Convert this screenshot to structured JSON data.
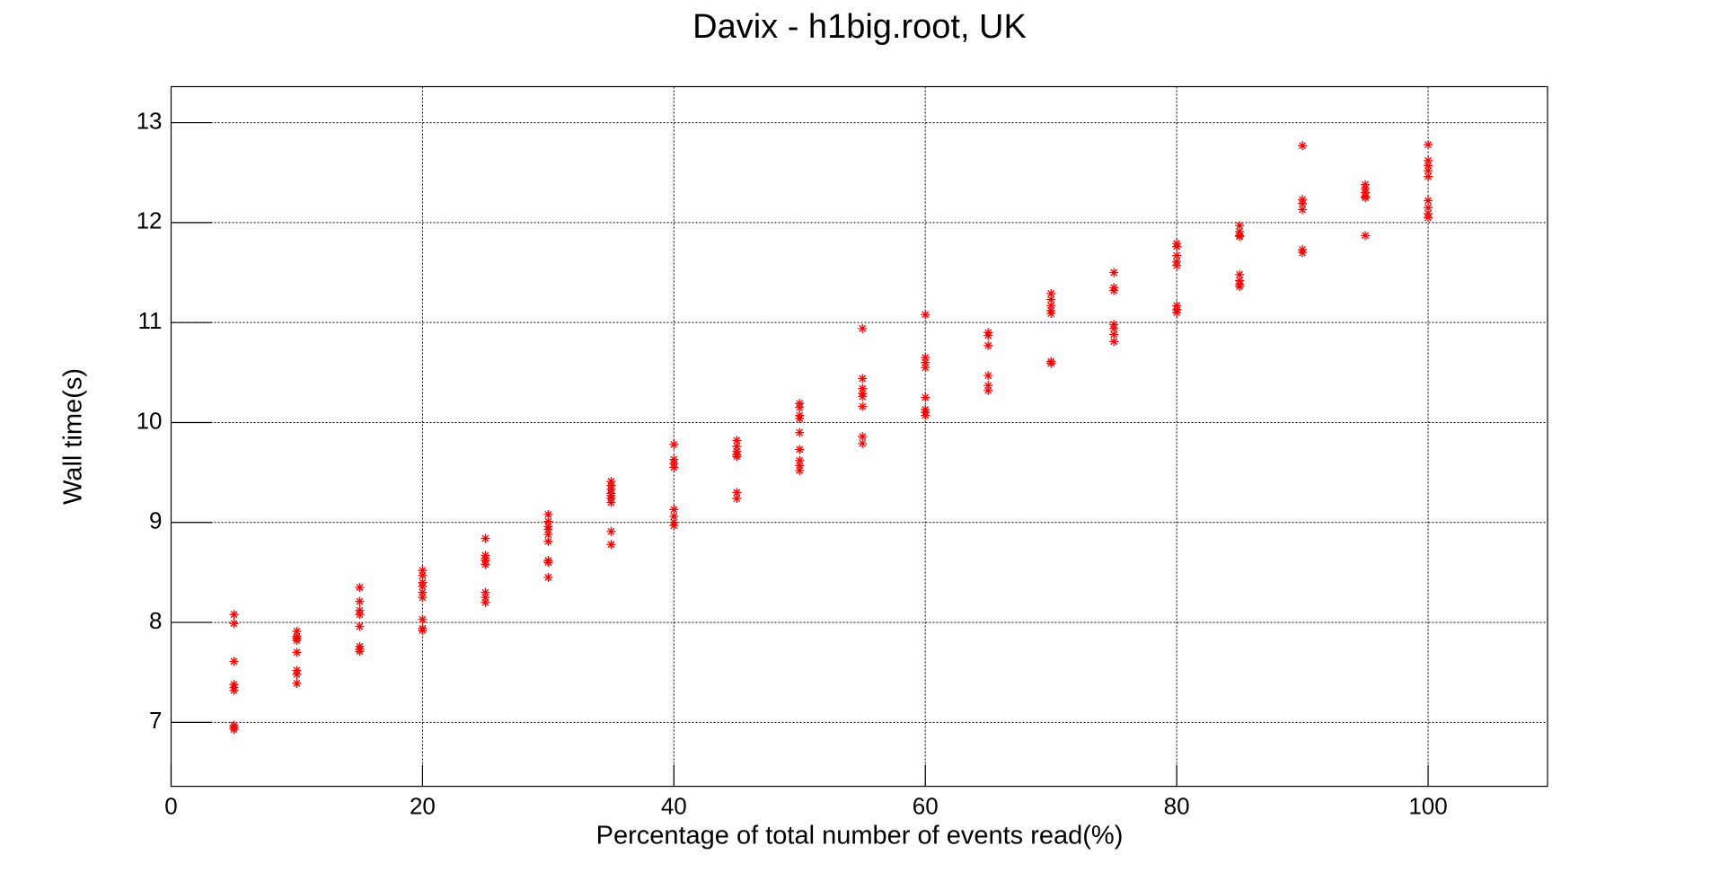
{
  "chart_data": {
    "type": "scatter",
    "title": "Davix - h1big.root, UK",
    "xlabel": "Percentage of total number of events read(%)",
    "ylabel": "Wall time(s)",
    "xlim": [
      0,
      109.5
    ],
    "ylim": [
      6.36,
      13.36
    ],
    "xticks": [
      0,
      20,
      40,
      60,
      80,
      100
    ],
    "yticks": [
      7,
      8,
      9,
      10,
      11,
      12,
      13
    ],
    "grid": true,
    "series": [
      {
        "color": "#ff0000",
        "x": [
          5,
          5,
          5,
          5,
          5,
          5,
          5,
          5,
          5,
          10,
          10,
          10,
          10,
          10,
          10,
          10,
          10,
          15,
          15,
          15,
          15,
          15,
          15,
          15,
          15,
          20,
          20,
          20,
          20,
          20,
          20,
          20,
          20,
          20,
          25,
          25,
          25,
          25,
          25,
          25,
          25,
          25,
          30,
          30,
          30,
          30,
          30,
          30,
          30,
          30,
          30,
          35,
          35,
          35,
          35,
          35,
          35,
          35,
          35,
          35,
          40,
          40,
          40,
          40,
          40,
          40,
          40,
          40,
          45,
          45,
          45,
          45,
          45,
          45,
          45,
          50,
          50,
          50,
          50,
          50,
          50,
          50,
          50,
          50,
          55,
          55,
          55,
          55,
          55,
          55,
          55,
          55,
          60,
          60,
          60,
          60,
          60,
          60,
          60,
          60,
          65,
          65,
          65,
          65,
          65,
          65,
          70,
          70,
          70,
          70,
          70,
          70,
          70,
          75,
          75,
          75,
          75,
          75,
          75,
          75,
          80,
          80,
          80,
          80,
          80,
          80,
          80,
          80,
          85,
          85,
          85,
          85,
          85,
          85,
          85,
          85,
          90,
          90,
          90,
          90,
          90,
          90,
          95,
          95,
          95,
          95,
          95,
          95,
          100,
          100,
          100,
          100,
          100,
          100,
          100,
          100,
          100
        ],
        "values": [
          8.08,
          7.99,
          7.61,
          7.38,
          7.35,
          7.32,
          6.97,
          6.95,
          6.93,
          7.91,
          7.86,
          7.84,
          7.82,
          7.7,
          7.52,
          7.48,
          7.39,
          8.35,
          8.21,
          8.12,
          8.08,
          7.96,
          7.76,
          7.73,
          7.71,
          8.52,
          8.47,
          8.4,
          8.36,
          8.3,
          8.25,
          8.03,
          7.94,
          7.92,
          8.84,
          8.67,
          8.64,
          8.62,
          8.58,
          8.3,
          8.25,
          8.2,
          9.08,
          9.01,
          8.96,
          8.93,
          8.88,
          8.81,
          8.62,
          8.6,
          8.45,
          9.41,
          9.37,
          9.33,
          9.29,
          9.27,
          9.24,
          9.2,
          8.91,
          8.78,
          9.78,
          9.63,
          9.59,
          9.55,
          9.13,
          9.06,
          9.0,
          8.97,
          9.82,
          9.76,
          9.71,
          9.68,
          9.66,
          9.3,
          9.24,
          10.19,
          10.15,
          10.07,
          10.04,
          9.9,
          9.73,
          9.62,
          9.57,
          9.52,
          10.94,
          10.44,
          10.34,
          10.29,
          10.26,
          10.16,
          9.86,
          9.79,
          11.08,
          10.65,
          10.6,
          10.55,
          10.25,
          10.13,
          10.1,
          10.07,
          10.9,
          10.87,
          10.77,
          10.47,
          10.37,
          10.32,
          11.29,
          11.23,
          11.17,
          11.12,
          11.09,
          10.61,
          10.59,
          11.5,
          11.35,
          11.32,
          10.98,
          10.94,
          10.88,
          10.81,
          11.79,
          11.76,
          11.67,
          11.61,
          11.57,
          11.17,
          11.13,
          11.1,
          11.97,
          11.91,
          11.87,
          11.86,
          11.48,
          11.42,
          11.38,
          11.36,
          12.77,
          12.23,
          12.19,
          12.13,
          11.73,
          11.7,
          12.38,
          12.34,
          12.3,
          12.26,
          12.25,
          11.87,
          12.78,
          12.62,
          12.57,
          12.52,
          12.46,
          12.22,
          12.15,
          12.09,
          12.05
        ]
      }
    ]
  }
}
